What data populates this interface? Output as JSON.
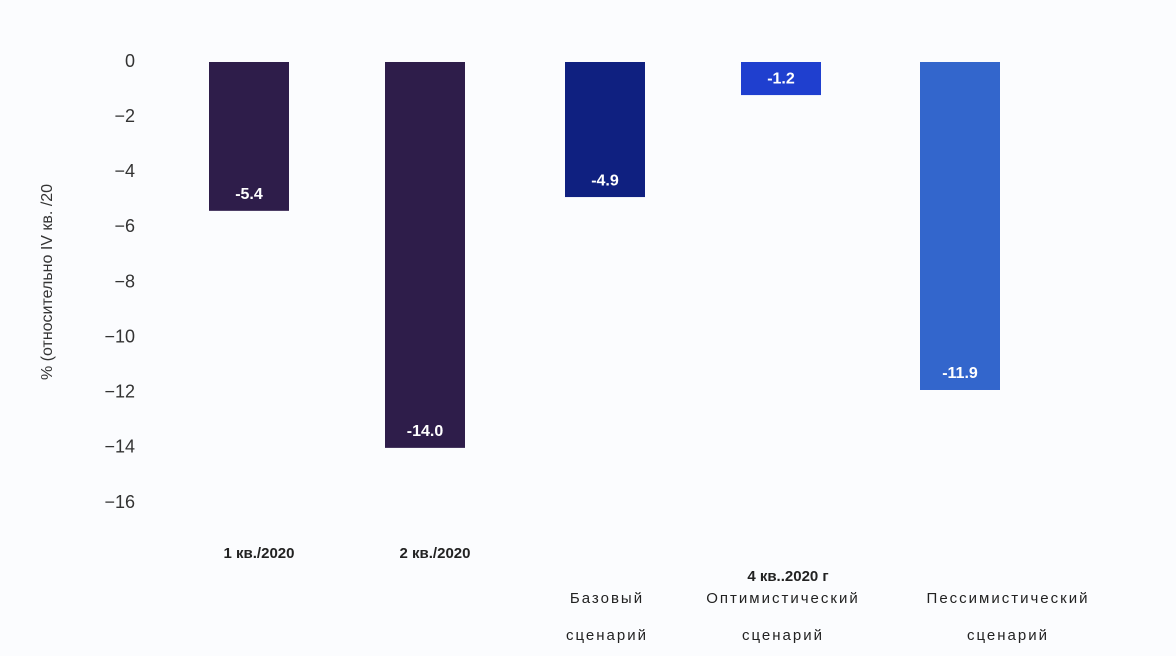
{
  "chart_data": {
    "type": "bar",
    "y_label": "% (относительно IV кв. /20",
    "categories": [
      "1 кв./2020",
      "2 кв./2020",
      "Базовый сценарий",
      "Оптимистический сценарий",
      "Пессимистический сценарий"
    ],
    "group_label": "4 кв..2020 г",
    "values": [
      -5.4,
      -14.0,
      -4.9,
      -1.2,
      -11.9
    ],
    "value_labels": [
      "-5.4",
      "-14.0",
      "-4.9",
      "-1.2",
      "-11.9"
    ],
    "colors": [
      "#2e1d4a",
      "#2e1d4a",
      "#0f2080",
      "#1f3fcf",
      "#3366cc"
    ],
    "ylim": [
      0,
      -16
    ],
    "yticks": [
      0,
      {
        "value": -2,
        "label": "−2"
      },
      {
        "value": -4,
        "label": "−4"
      },
      {
        "value": -6,
        "label": "−6"
      },
      {
        "value": -8,
        "label": "−8"
      },
      {
        "value": -10,
        "label": "−10"
      },
      {
        "value": -12,
        "label": "−12"
      },
      {
        "value": -14,
        "label": "−14"
      },
      {
        "value": -16,
        "label": "−16"
      }
    ],
    "grid": false
  }
}
